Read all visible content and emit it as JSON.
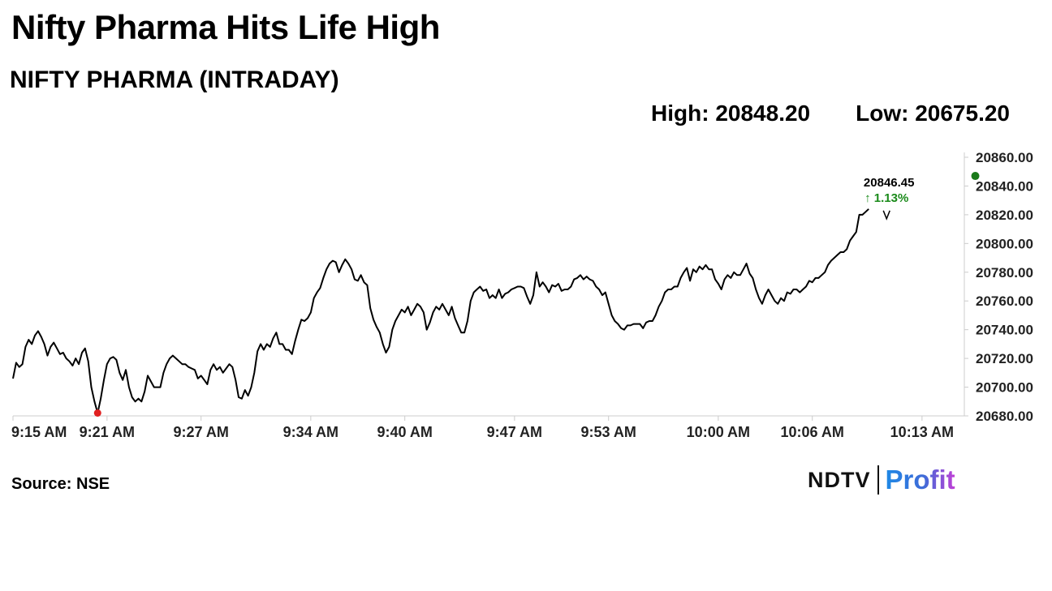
{
  "header": {
    "title": "Nifty Pharma Hits Life High",
    "subtitle": "NIFTY PHARMA (INTRADAY)",
    "high_label": "High: 20848.20",
    "low_label": "Low: 20675.20"
  },
  "footer": {
    "source": "Source: NSE",
    "logo_left": "NDTV",
    "logo_right": "Profit"
  },
  "colors": {
    "line": "#000000",
    "low_marker": "#e02020",
    "high_marker": "#1a7a1a",
    "change_text": "#1a8a1a",
    "axis": "#cccccc"
  },
  "chart_data": {
    "type": "line",
    "x_tick_labels": [
      "9:15 AM",
      "9:21 AM",
      "9:27 AM",
      "9:34 AM",
      "9:40 AM",
      "9:47 AM",
      "9:53 AM",
      "10:00 AM",
      "10:06 AM",
      "10:13 AM"
    ],
    "x_tick_minutes": [
      0,
      6,
      12,
      19,
      25,
      32,
      38,
      45,
      51,
      58
    ],
    "y_ticks": [
      20680,
      20700,
      20720,
      20740,
      20760,
      20780,
      20800,
      20820,
      20840,
      20860
    ],
    "y_tick_labels": [
      "20680.00",
      "20700.00",
      "20720.00",
      "20740.00",
      "20760.00",
      "20780.00",
      "20800.00",
      "20820.00",
      "20840.00",
      "20860.00"
    ],
    "ylim": [
      20680,
      20860
    ],
    "xlim": [
      0,
      60.7
    ],
    "last_value_label": "20846.45",
    "change_label": "↑ 1.13%",
    "low_point": {
      "minute": 5.4,
      "value": 20682
    },
    "high_point": {
      "minute": 61.4,
      "value": 20847
    },
    "series": [
      {
        "points": [
          [
            0.0,
            20706
          ],
          [
            0.2,
            20717
          ],
          [
            0.4,
            20714
          ],
          [
            0.6,
            20716
          ],
          [
            0.8,
            20728
          ],
          [
            1.0,
            20733
          ],
          [
            1.2,
            20730
          ],
          [
            1.4,
            20736
          ],
          [
            1.6,
            20739
          ],
          [
            1.8,
            20735
          ],
          [
            2.0,
            20730
          ],
          [
            2.2,
            20722
          ],
          [
            2.4,
            20728
          ],
          [
            2.6,
            20731
          ],
          [
            2.8,
            20727
          ],
          [
            3.0,
            20723
          ],
          [
            3.2,
            20724
          ],
          [
            3.4,
            20720
          ],
          [
            3.6,
            20718
          ],
          [
            3.8,
            20715
          ],
          [
            4.0,
            20720
          ],
          [
            4.2,
            20716
          ],
          [
            4.4,
            20724
          ],
          [
            4.6,
            20727
          ],
          [
            4.8,
            20718
          ],
          [
            5.0,
            20700
          ],
          [
            5.2,
            20690
          ],
          [
            5.4,
            20682
          ],
          [
            5.6,
            20692
          ],
          [
            5.8,
            20705
          ],
          [
            6.0,
            20716
          ],
          [
            6.2,
            20720
          ],
          [
            6.4,
            20721
          ],
          [
            6.6,
            20719
          ],
          [
            6.8,
            20710
          ],
          [
            7.0,
            20705
          ],
          [
            7.2,
            20712
          ],
          [
            7.4,
            20700
          ],
          [
            7.6,
            20693
          ],
          [
            7.8,
            20690
          ],
          [
            8.0,
            20692
          ],
          [
            8.2,
            20690
          ],
          [
            8.4,
            20697
          ],
          [
            8.6,
            20708
          ],
          [
            8.8,
            20704
          ],
          [
            9.0,
            20700
          ],
          [
            9.2,
            20700
          ],
          [
            9.4,
            20700
          ],
          [
            9.6,
            20710
          ],
          [
            9.8,
            20716
          ],
          [
            10.0,
            20720
          ],
          [
            10.2,
            20722
          ],
          [
            10.4,
            20720
          ],
          [
            10.6,
            20718
          ],
          [
            10.8,
            20716
          ],
          [
            11.0,
            20716
          ],
          [
            11.2,
            20714
          ],
          [
            11.4,
            20713
          ],
          [
            11.6,
            20712
          ],
          [
            11.8,
            20706
          ],
          [
            12.0,
            20708
          ],
          [
            12.2,
            20705
          ],
          [
            12.4,
            20702
          ],
          [
            12.6,
            20712
          ],
          [
            12.8,
            20716
          ],
          [
            13.0,
            20712
          ],
          [
            13.2,
            20714
          ],
          [
            13.4,
            20710
          ],
          [
            13.6,
            20713
          ],
          [
            13.8,
            20716
          ],
          [
            14.0,
            20714
          ],
          [
            14.2,
            20705
          ],
          [
            14.4,
            20693
          ],
          [
            14.6,
            20692
          ],
          [
            14.8,
            20698
          ],
          [
            15.0,
            20694
          ],
          [
            15.2,
            20700
          ],
          [
            15.4,
            20710
          ],
          [
            15.6,
            20725
          ],
          [
            15.8,
            20730
          ],
          [
            16.0,
            20726
          ],
          [
            16.2,
            20730
          ],
          [
            16.4,
            20728
          ],
          [
            16.6,
            20734
          ],
          [
            16.8,
            20738
          ],
          [
            17.0,
            20730
          ],
          [
            17.2,
            20730
          ],
          [
            17.4,
            20726
          ],
          [
            17.6,
            20726
          ],
          [
            17.8,
            20723
          ],
          [
            18.0,
            20732
          ],
          [
            18.2,
            20740
          ],
          [
            18.4,
            20747
          ],
          [
            18.6,
            20746
          ],
          [
            18.8,
            20748
          ],
          [
            19.0,
            20752
          ],
          [
            19.2,
            20762
          ],
          [
            19.4,
            20766
          ],
          [
            19.6,
            20769
          ],
          [
            19.8,
            20776
          ],
          [
            20.0,
            20782
          ],
          [
            20.2,
            20786
          ],
          [
            20.4,
            20788
          ],
          [
            20.6,
            20787
          ],
          [
            20.8,
            20780
          ],
          [
            21.0,
            20785
          ],
          [
            21.2,
            20789
          ],
          [
            21.4,
            20786
          ],
          [
            21.6,
            20782
          ],
          [
            21.8,
            20775
          ],
          [
            22.0,
            20774
          ],
          [
            22.2,
            20778
          ],
          [
            22.4,
            20773
          ],
          [
            22.6,
            20771
          ],
          [
            22.8,
            20755
          ],
          [
            23.0,
            20747
          ],
          [
            23.2,
            20742
          ],
          [
            23.4,
            20738
          ],
          [
            23.6,
            20730
          ],
          [
            23.8,
            20724
          ],
          [
            24.0,
            20728
          ],
          [
            24.2,
            20740
          ],
          [
            24.4,
            20746
          ],
          [
            24.6,
            20750
          ],
          [
            24.8,
            20754
          ],
          [
            25.0,
            20752
          ],
          [
            25.2,
            20756
          ],
          [
            25.4,
            20750
          ],
          [
            25.6,
            20754
          ],
          [
            25.8,
            20758
          ],
          [
            26.0,
            20756
          ],
          [
            26.2,
            20752
          ],
          [
            26.4,
            20740
          ],
          [
            26.6,
            20745
          ],
          [
            26.8,
            20752
          ],
          [
            27.0,
            20756
          ],
          [
            27.2,
            20754
          ],
          [
            27.4,
            20758
          ],
          [
            27.6,
            20754
          ],
          [
            27.8,
            20750
          ],
          [
            28.0,
            20756
          ],
          [
            28.2,
            20748
          ],
          [
            28.4,
            20743
          ],
          [
            28.6,
            20738
          ],
          [
            28.8,
            20738
          ],
          [
            29.0,
            20746
          ],
          [
            29.2,
            20760
          ],
          [
            29.4,
            20766
          ],
          [
            29.6,
            20768
          ],
          [
            29.8,
            20770
          ],
          [
            30.0,
            20767
          ],
          [
            30.2,
            20768
          ],
          [
            30.4,
            20762
          ],
          [
            30.6,
            20764
          ],
          [
            30.8,
            20762
          ],
          [
            31.0,
            20768
          ],
          [
            31.2,
            20762
          ],
          [
            31.4,
            20765
          ],
          [
            31.6,
            20766
          ],
          [
            31.8,
            20768
          ],
          [
            32.0,
            20769
          ],
          [
            32.2,
            20770
          ],
          [
            32.4,
            20770
          ],
          [
            32.6,
            20769
          ],
          [
            32.8,
            20763
          ],
          [
            33.0,
            20758
          ],
          [
            33.2,
            20764
          ],
          [
            33.4,
            20780
          ],
          [
            33.6,
            20770
          ],
          [
            33.8,
            20773
          ],
          [
            34.0,
            20770
          ],
          [
            34.2,
            20766
          ],
          [
            34.4,
            20771
          ],
          [
            34.6,
            20770
          ],
          [
            34.8,
            20772
          ],
          [
            35.0,
            20767
          ],
          [
            35.2,
            20768
          ],
          [
            35.4,
            20768
          ],
          [
            35.6,
            20770
          ],
          [
            35.8,
            20775
          ],
          [
            36.0,
            20776
          ],
          [
            36.2,
            20778
          ],
          [
            36.4,
            20775
          ],
          [
            36.6,
            20777
          ],
          [
            36.8,
            20775
          ],
          [
            37.0,
            20774
          ],
          [
            37.2,
            20770
          ],
          [
            37.4,
            20768
          ],
          [
            37.6,
            20764
          ],
          [
            37.8,
            20766
          ],
          [
            38.0,
            20758
          ],
          [
            38.2,
            20750
          ],
          [
            38.4,
            20746
          ],
          [
            38.6,
            20744
          ],
          [
            38.8,
            20741
          ],
          [
            39.0,
            20740
          ],
          [
            39.2,
            20743
          ],
          [
            39.4,
            20743
          ],
          [
            39.6,
            20744
          ],
          [
            39.8,
            20744
          ],
          [
            40.0,
            20744
          ],
          [
            40.2,
            20741
          ],
          [
            40.4,
            20745
          ],
          [
            40.6,
            20746
          ],
          [
            40.8,
            20746
          ],
          [
            41.0,
            20750
          ],
          [
            41.2,
            20756
          ],
          [
            41.4,
            20760
          ],
          [
            41.6,
            20766
          ],
          [
            41.8,
            20768
          ],
          [
            42.0,
            20768
          ],
          [
            42.2,
            20770
          ],
          [
            42.4,
            20770
          ],
          [
            42.6,
            20776
          ],
          [
            42.8,
            20780
          ],
          [
            43.0,
            20783
          ],
          [
            43.2,
            20774
          ],
          [
            43.4,
            20782
          ],
          [
            43.6,
            20780
          ],
          [
            43.8,
            20784
          ],
          [
            44.0,
            20782
          ],
          [
            44.2,
            20785
          ],
          [
            44.4,
            20782
          ],
          [
            44.6,
            20782
          ],
          [
            44.8,
            20775
          ],
          [
            45.0,
            20772
          ],
          [
            45.2,
            20768
          ],
          [
            45.4,
            20775
          ],
          [
            45.6,
            20778
          ],
          [
            45.8,
            20776
          ],
          [
            46.0,
            20780
          ],
          [
            46.2,
            20778
          ],
          [
            46.4,
            20778
          ],
          [
            46.6,
            20782
          ],
          [
            46.8,
            20786
          ],
          [
            47.0,
            20779
          ],
          [
            47.2,
            20776
          ],
          [
            47.4,
            20768
          ],
          [
            47.6,
            20762
          ],
          [
            47.8,
            20758
          ],
          [
            48.0,
            20764
          ],
          [
            48.2,
            20768
          ],
          [
            48.4,
            20764
          ],
          [
            48.6,
            20760
          ],
          [
            48.8,
            20758
          ],
          [
            49.0,
            20762
          ],
          [
            49.2,
            20760
          ],
          [
            49.4,
            20766
          ],
          [
            49.6,
            20765
          ],
          [
            49.8,
            20768
          ],
          [
            50.0,
            20768
          ],
          [
            50.2,
            20766
          ],
          [
            50.4,
            20768
          ],
          [
            50.6,
            20770
          ],
          [
            50.8,
            20774
          ],
          [
            51.0,
            20773
          ],
          [
            51.2,
            20776
          ],
          [
            51.4,
            20776
          ],
          [
            51.6,
            20778
          ],
          [
            51.8,
            20780
          ],
          [
            52.0,
            20785
          ],
          [
            52.2,
            20788
          ],
          [
            52.4,
            20790
          ],
          [
            52.6,
            20792
          ],
          [
            52.8,
            20794
          ],
          [
            53.0,
            20794
          ],
          [
            53.2,
            20796
          ],
          [
            53.4,
            20802
          ],
          [
            53.6,
            20805
          ],
          [
            53.8,
            20808
          ],
          [
            54.0,
            20820
          ],
          [
            54.2,
            20820
          ],
          [
            54.4,
            20822
          ],
          [
            54.6,
            20824
          ]
        ]
      }
    ]
  }
}
